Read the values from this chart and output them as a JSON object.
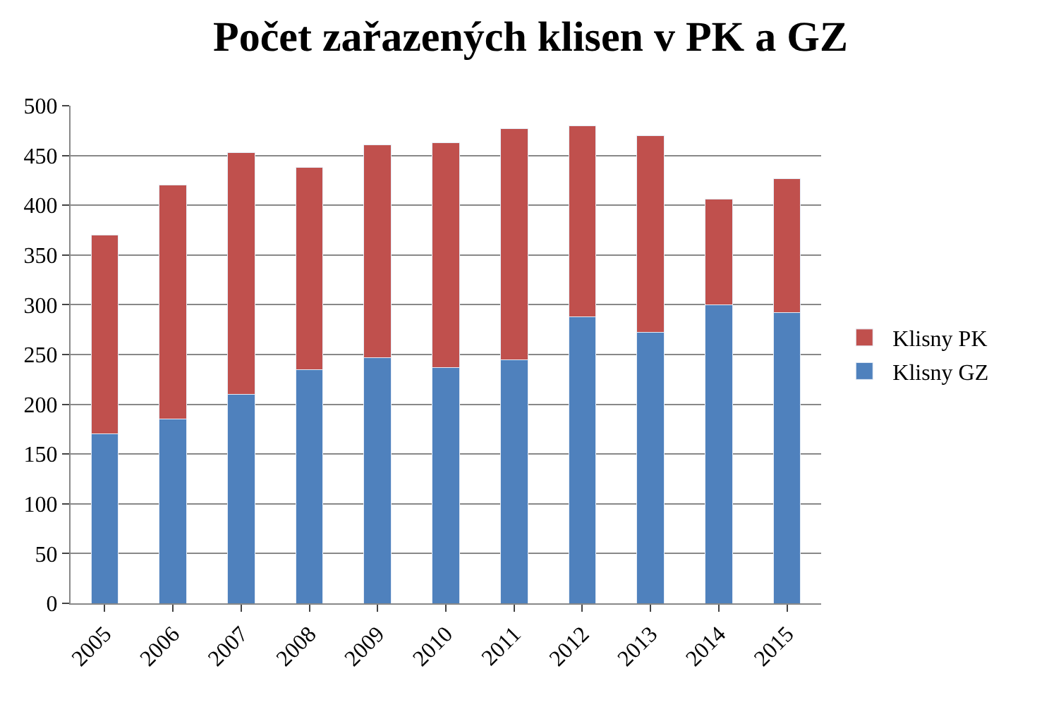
{
  "chart_data": {
    "type": "bar",
    "title": "Počet zařazených klisen v PK a GZ",
    "categories": [
      "2005",
      "2006",
      "2007",
      "2008",
      "2009",
      "2010",
      "2011",
      "2012",
      "2013",
      "2014",
      "2015"
    ],
    "series": [
      {
        "name": "Klisny GZ",
        "color": "#4f81bd",
        "values": [
          170,
          185,
          210,
          235,
          247,
          237,
          245,
          288,
          272,
          300,
          292
        ]
      },
      {
        "name": "Klisny PK",
        "color": "#c0504d",
        "values": [
          200,
          235,
          243,
          203,
          214,
          226,
          232,
          192,
          198,
          106,
          135
        ]
      }
    ],
    "stacked": true,
    "ylim": [
      0,
      500
    ],
    "yticks": [
      0,
      50,
      100,
      150,
      200,
      250,
      300,
      350,
      400,
      450,
      500
    ],
    "grid": "y",
    "legend": "right"
  }
}
